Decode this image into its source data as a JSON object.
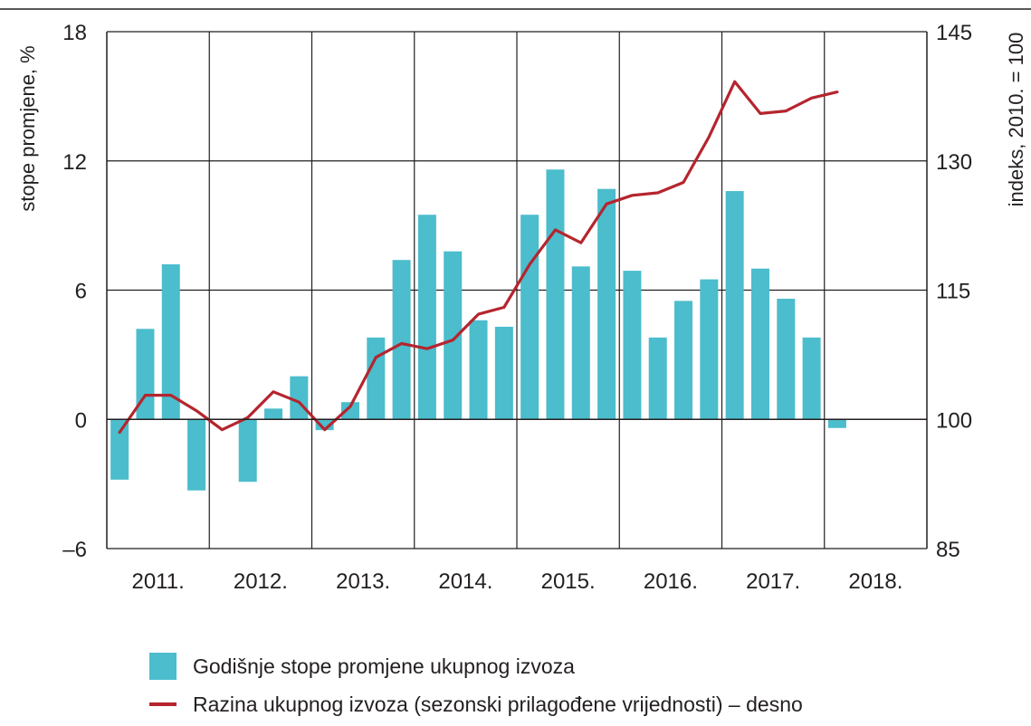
{
  "chart_data": {
    "type": "bar+line",
    "categories": [
      "2011. Q1",
      "2011. Q2",
      "2011. Q3",
      "2011. Q4",
      "2012. Q1",
      "2012. Q2",
      "2012. Q3",
      "2012. Q4",
      "2013. Q1",
      "2013. Q2",
      "2013. Q3",
      "2013. Q4",
      "2014. Q1",
      "2014. Q2",
      "2014. Q3",
      "2014. Q4",
      "2015. Q1",
      "2015. Q2",
      "2015. Q3",
      "2015. Q4",
      "2016. Q1",
      "2016. Q2",
      "2016. Q3",
      "2016. Q4",
      "2017. Q1",
      "2017. Q2",
      "2017. Q3",
      "2017. Q4",
      "2018. Q1"
    ],
    "x_tick_labels": [
      "2011.",
      "2012.",
      "2013.",
      "2014.",
      "2015.",
      "2016.",
      "2017.",
      "2018."
    ],
    "series": [
      {
        "name": "Godišnje stope promjene ukupnog izvoza",
        "type": "bar",
        "axis": "left",
        "color": "#4bbdcc",
        "values": [
          -2.8,
          4.2,
          7.2,
          -3.3,
          null,
          -2.9,
          0.5,
          2.0,
          -0.5,
          0.8,
          3.8,
          7.4,
          9.5,
          7.8,
          4.6,
          4.3,
          9.5,
          11.6,
          7.1,
          10.7,
          6.9,
          3.8,
          5.5,
          6.5,
          10.6,
          7.0,
          5.6,
          3.8,
          -0.4
        ]
      },
      {
        "name": "Razina ukupnog izvoza (sezonski prilagođene vrijednosti) – desno",
        "type": "line",
        "axis": "right",
        "color": "#b5252e",
        "values": [
          98.5,
          102.8,
          102.8,
          101.0,
          98.8,
          100.2,
          103.2,
          102.0,
          98.8,
          101.5,
          107.2,
          108.8,
          108.2,
          109.2,
          112.2,
          113.0,
          118.0,
          122.0,
          120.5,
          125.0,
          126.0,
          126.3,
          127.5,
          132.8,
          139.2,
          135.5,
          135.8,
          137.3,
          138.0
        ]
      }
    ],
    "y_left": {
      "label": "stope promjene, %",
      "ticks": [
        "18",
        "12",
        "6",
        "0",
        "–6"
      ],
      "ylim": [
        -6,
        18
      ]
    },
    "y_right": {
      "label": "indeks, 2010. = 100",
      "ticks": [
        "145",
        "130",
        "115",
        "100",
        "85"
      ],
      "ylim": [
        85,
        145
      ]
    },
    "grid": true,
    "legend_position": "bottom-left"
  }
}
